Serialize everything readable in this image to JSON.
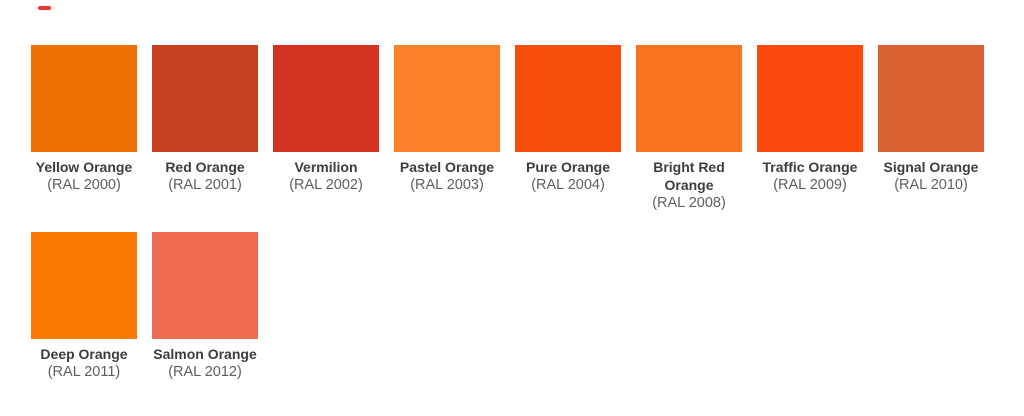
{
  "theme": {
    "background": "#ffffff",
    "name-color": "#3d3d3d",
    "code-color": "#5f5f5f"
  },
  "decoration": {
    "red_dash_color": "#e63a2e"
  },
  "chart_data": {
    "type": "table",
    "items": [
      {
        "name": "Yellow Orange",
        "code": "(RAL 2000)",
        "color": "#EE7203"
      },
      {
        "name": "Red Orange",
        "code": "(RAL 2001)",
        "color": "#C54120"
      },
      {
        "name": "Vermilion",
        "code": "(RAL 2002)",
        "color": "#D23321"
      },
      {
        "name": "Pastel Orange",
        "code": "(RAL 2003)",
        "color": "#FA8128"
      },
      {
        "name": "Pure Orange",
        "code": "(RAL 2004)",
        "color": "#F94D0C"
      },
      {
        "name": "Bright Red Orange",
        "code": "(RAL 2008)",
        "color": "#F97422"
      },
      {
        "name": "Traffic Orange",
        "code": "(RAL 2009)",
        "color": "#F9490D"
      },
      {
        "name": "Signal Orange",
        "code": "(RAL 2010)",
        "color": "#D96030"
      },
      {
        "name": "Deep Orange",
        "code": "(RAL 2011)",
        "color": "#FB7A03"
      },
      {
        "name": "Salmon Orange",
        "code": "(RAL 2012)",
        "color": "#EE6A51"
      }
    ]
  }
}
